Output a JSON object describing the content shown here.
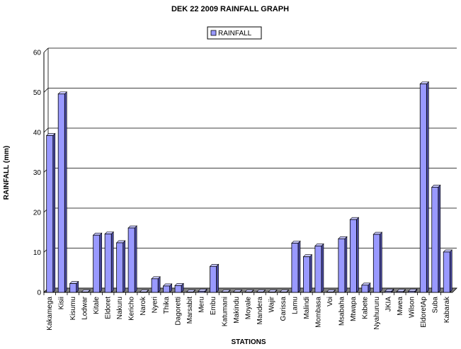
{
  "chart_data": {
    "type": "bar",
    "title": "DEK 22 2009 RAINFALL GRAPH",
    "xlabel": "STATIONS",
    "ylabel": "RAINFALL (mm)",
    "ylim": [
      0,
      60
    ],
    "yticks": [
      0,
      10,
      20,
      30,
      40,
      50,
      60
    ],
    "grid": true,
    "legend_position": "top-center",
    "colors": {
      "bar": "#9999ff",
      "bar_side": "#4a4aa0",
      "bar_top": "#c8c8ff",
      "floor": "#808080"
    },
    "categories": [
      "Kakamega",
      "Kisii",
      "Kisumu",
      "Lodwar",
      "Kitale",
      "Eldoret",
      "Nakuru",
      "Kericho",
      "Narok",
      "Nyeri",
      "Thika",
      "Dagoretti",
      "Marsabit",
      "Meru",
      "Embu",
      "Katumani",
      "Makindu",
      "Moyale",
      "Mandera",
      "Wajir",
      "Garissa",
      "Lamu",
      "Malindi",
      "Mombasa",
      "Voi",
      "Msabaha",
      "Mtwapa",
      "Kabete",
      "Nyahururu",
      "JKIA",
      "Mwea",
      "Wilson",
      "EldoretAp",
      "Suba",
      "Kabarak"
    ],
    "series": [
      {
        "name": "RAINFALL",
        "values": [
          39.2,
          49.6,
          2.2,
          0.1,
          14.3,
          14.6,
          12.4,
          16.1,
          0.1,
          3.4,
          1.6,
          1.7,
          0.1,
          0.3,
          6.5,
          0.1,
          0.1,
          0.1,
          0.1,
          0.1,
          0.1,
          12.3,
          8.9,
          11.6,
          0.1,
          13.4,
          18.2,
          1.8,
          14.5,
          0.3,
          0.2,
          0.3,
          52.1,
          26.3,
          10.1
        ]
      }
    ]
  }
}
